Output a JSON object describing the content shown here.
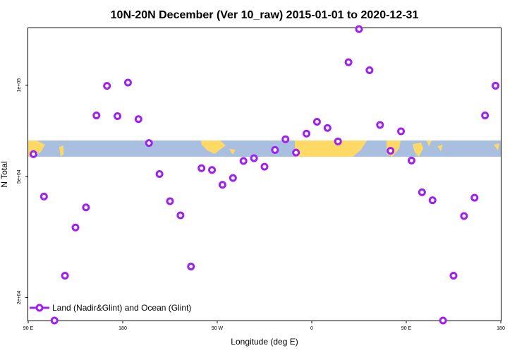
{
  "chart_data": {
    "type": "scatter",
    "title": "10N-20N December (Ver 10_raw)   2015-01-01 to 2020-12-31",
    "xlabel": "Longitude (deg E)",
    "ylabel": "N Total",
    "x_tick_labels": [
      "90 E",
      "180",
      "90 W",
      "0",
      "90 E",
      "180"
    ],
    "x_tick_values": [
      90,
      180,
      270,
      360,
      450,
      540
    ],
    "xlim": [
      90,
      540
    ],
    "y_scale": "log",
    "y_tick_labels": [
      "2e+04",
      "5e+04",
      "1e+05"
    ],
    "y_tick_values": [
      20000,
      50000,
      100000
    ],
    "ylim": [
      16800,
      154000
    ],
    "marker_color": "#a020f0",
    "map_strip_colors": {
      "ocean": "#a8bfe0",
      "land": "#ffd966"
    },
    "legend": {
      "position": "bottom-left",
      "label": "Land (Nadir&Glint) and Ocean (Glint)"
    },
    "series": [
      {
        "name": "Land (Nadir&Glint) and Ocean (Glint)",
        "x": [
          95,
          105,
          115,
          125,
          135,
          145,
          155,
          165,
          175,
          185,
          195,
          205,
          215,
          225,
          235,
          245,
          255,
          265,
          275,
          285,
          295,
          305,
          315,
          325,
          335,
          345,
          355,
          365,
          375,
          385,
          395,
          405,
          415,
          425,
          435,
          445,
          455,
          465,
          475,
          485,
          495,
          505,
          515,
          525,
          535
        ],
        "y": [
          59300,
          43000,
          16800,
          23600,
          34000,
          39600,
          79500,
          99500,
          79100,
          102000,
          77300,
          64500,
          51000,
          41500,
          37300,
          25300,
          53300,
          52600,
          47000,
          49500,
          56300,
          57500,
          53900,
          61200,
          66400,
          60000,
          69300,
          75800,
          72300,
          65300,
          119000,
          153000,
          112000,
          74000,
          60800,
          70500,
          56500,
          44400,
          41800,
          16800,
          23600,
          37100,
          42600,
          79500,
          99600
        ]
      }
    ]
  }
}
